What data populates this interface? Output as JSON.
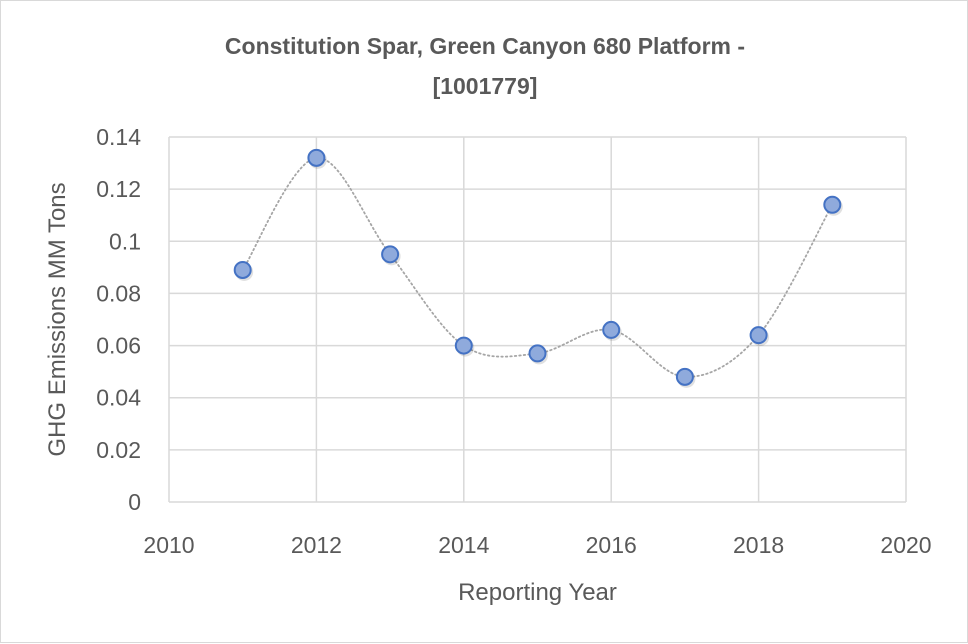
{
  "chart_data": {
    "type": "scatter",
    "title": "Constitution Spar, Green Canyon 680 Platform - [1001779]",
    "title_lines": [
      "Constitution Spar, Green Canyon 680 Platform -",
      "[1001779]"
    ],
    "xlabel": "Reporting Year",
    "ylabel": "GHG Emissions MM Tons",
    "xlim": [
      2010,
      2020
    ],
    "ylim": [
      0,
      0.14
    ],
    "x_ticks": [
      2010,
      2012,
      2014,
      2016,
      2018,
      2020
    ],
    "x_tick_labels": [
      "2010",
      "2012",
      "2014",
      "2016",
      "2018",
      "2020"
    ],
    "y_ticks": [
      0,
      0.02,
      0.04,
      0.06,
      0.08,
      0.1,
      0.12,
      0.14
    ],
    "y_tick_labels": [
      "0",
      "0.02",
      "0.04",
      "0.06",
      "0.08",
      "0.1",
      "0.12",
      "0.14"
    ],
    "grid": true,
    "legend": "none",
    "line_style": "smoothed-dotted",
    "series": [
      {
        "name": "GHG Emissions",
        "x": [
          2011,
          2012,
          2013,
          2014,
          2015,
          2016,
          2017,
          2018,
          2019
        ],
        "y": [
          0.089,
          0.132,
          0.095,
          0.06,
          0.057,
          0.066,
          0.048,
          0.064,
          0.114
        ]
      }
    ],
    "colors": {
      "marker_fill": "#8faadc",
      "marker_stroke": "#4472c4",
      "line": "#a6a6a6",
      "grid": "#d9d9d9",
      "text": "#595959"
    }
  }
}
